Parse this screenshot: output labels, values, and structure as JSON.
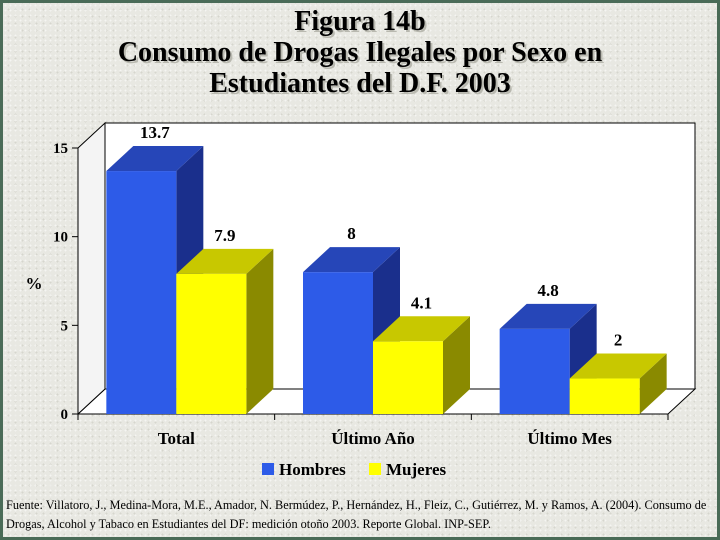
{
  "title_lines": [
    "Figura 14b",
    "Consumo de Drogas Ilegales por Sexo en",
    "Estudiantes del D.F. 2003"
  ],
  "source_text": "Fuente: Villatoro, J., Medina-Mora, M.E., Amador, N. Bermúdez, P., Hernández, H., Fleiz, C., Gutiérrez, M. y Ramos, A. (2004). Consumo de Drogas, Alcohol y Tabaco en Estudiantes del DF: medición otoño 2003. Reporte Global. INP-SEP.",
  "colors": {
    "hombres": "#2d5be8",
    "hombres_side": "#1a2f8c",
    "hombres_top": "#2646b8",
    "mujeres": "#ffff00",
    "mujeres_side": "#8a8a00",
    "mujeres_top": "#c8c800",
    "border": "#4a6b57",
    "background": "#e8e8e2"
  },
  "chart_data": {
    "type": "bar",
    "style": "3d-clustered",
    "title": "Figura 14b Consumo de Drogas Ilegales por Sexo en Estudiantes del D.F. 2003",
    "categories": [
      "Total",
      "Último Año",
      "Último Mes"
    ],
    "series": [
      {
        "name": "Hombres",
        "values": [
          13.7,
          8,
          4.8
        ],
        "labels": [
          "13.7",
          "8",
          "4.8"
        ]
      },
      {
        "name": "Mujeres",
        "values": [
          7.9,
          4.1,
          2
        ],
        "labels": [
          "7.9",
          "4.1",
          "2"
        ]
      }
    ],
    "ylabel": "%",
    "ylim": [
      0,
      15
    ],
    "yticks": [
      0,
      5,
      10,
      15
    ],
    "grid": false,
    "legend_position": "bottom"
  }
}
